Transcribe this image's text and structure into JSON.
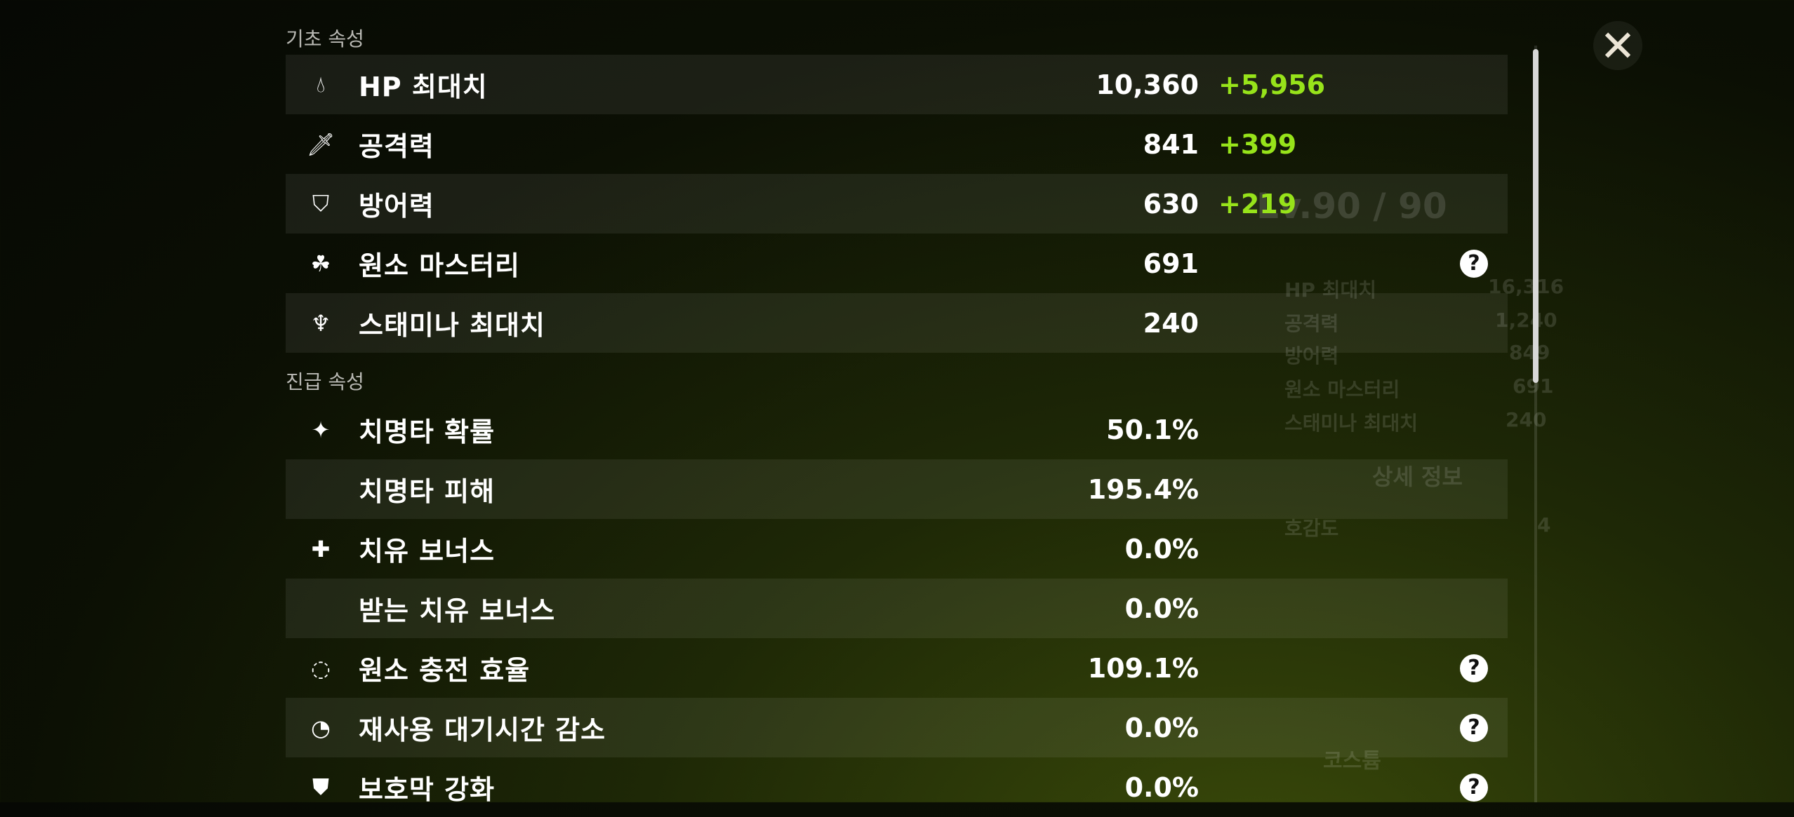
{
  "close_icon": "close-x-icon",
  "background": {
    "character_level": "Lv.90 / 90",
    "stats": [
      {
        "label": "HP 최대치",
        "value": "16,316"
      },
      {
        "label": "공격력",
        "value": "1,240"
      },
      {
        "label": "방어력",
        "value": "849"
      },
      {
        "label": "원소 마스터리",
        "value": "691"
      },
      {
        "label": "스태미나 최대치",
        "value": "240"
      }
    ],
    "details_button": "상세 정보",
    "friendship": {
      "label": "호감도",
      "value": "4"
    },
    "costume_button": "코스튬"
  },
  "base_section": {
    "title": "기초 속성",
    "rows": [
      {
        "icon": "hp-drop-icon",
        "label": "HP 최대치",
        "value": "10,360",
        "bonus": "+5,956",
        "help": false
      },
      {
        "icon": "sword-icon",
        "label": "공격력",
        "value": "841",
        "bonus": "+399",
        "help": false
      },
      {
        "icon": "shield-icon",
        "label": "방어력",
        "value": "630",
        "bonus": "+219",
        "help": false
      },
      {
        "icon": "elemental-mastery-icon",
        "label": "원소 마스터리",
        "value": "691",
        "bonus": "",
        "help": true
      },
      {
        "icon": "stamina-icon",
        "label": "스태미나 최대치",
        "value": "240",
        "bonus": "",
        "help": false
      }
    ]
  },
  "advanced_section": {
    "title": "진급 속성",
    "rows": [
      {
        "icon": "crit-rate-icon",
        "label": "치명타 확률",
        "value": "50.1%",
        "help": false
      },
      {
        "icon": "",
        "label": "치명타 피해",
        "value": "195.4%",
        "help": false
      },
      {
        "icon": "healing-cross-icon",
        "label": "치유 보너스",
        "value": "0.0%",
        "help": false
      },
      {
        "icon": "",
        "label": "받는 치유 보너스",
        "value": "0.0%",
        "help": false
      },
      {
        "icon": "energy-recharge-icon",
        "label": "원소 충전 효율",
        "value": "109.1%",
        "help": true
      },
      {
        "icon": "cooldown-icon",
        "label": "재사용 대기시간 감소",
        "value": "0.0%",
        "help": true
      },
      {
        "icon": "shield-strength-icon",
        "label": "보호막 강화",
        "value": "0.0%",
        "help": true
      }
    ]
  },
  "colors": {
    "bonus": "#97e31a",
    "row_alt": "rgba(255,255,255,0.07)"
  }
}
